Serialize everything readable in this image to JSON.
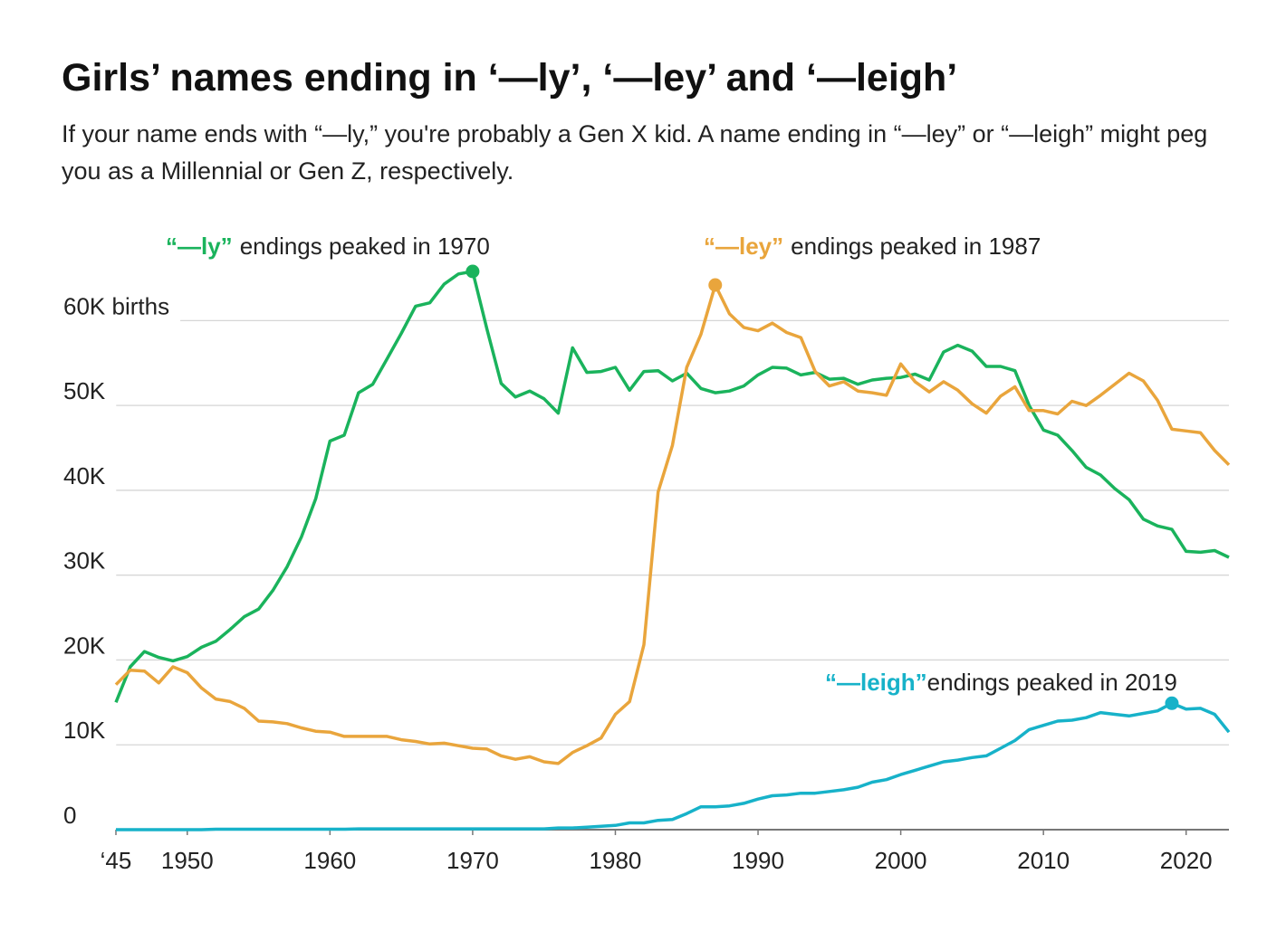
{
  "chart_data": {
    "type": "line",
    "title": "Girls’ names ending in ‘—ly’, ‘—ley’ and ‘—leigh’",
    "subtitle": "If your name ends with “—ly,” you're probably a Gen X kid. A name ending in “—ley” or “—leigh” might peg you as a Millennial or Gen Z, respectively.",
    "x": [
      1945,
      1946,
      1947,
      1948,
      1949,
      1950,
      1951,
      1952,
      1953,
      1954,
      1955,
      1956,
      1957,
      1958,
      1959,
      1960,
      1961,
      1962,
      1963,
      1964,
      1965,
      1966,
      1967,
      1968,
      1969,
      1970,
      1971,
      1972,
      1973,
      1974,
      1975,
      1976,
      1977,
      1978,
      1979,
      1980,
      1981,
      1982,
      1983,
      1984,
      1985,
      1986,
      1987,
      1988,
      1989,
      1990,
      1991,
      1992,
      1993,
      1994,
      1995,
      1996,
      1997,
      1998,
      1999,
      2000,
      2001,
      2002,
      2003,
      2004,
      2005,
      2006,
      2007,
      2008,
      2009,
      2010,
      2011,
      2012,
      2013,
      2014,
      2015,
      2016,
      2017,
      2018,
      2019,
      2020,
      2021,
      2022,
      2023
    ],
    "xlim": [
      1945,
      2023
    ],
    "xticks": [
      {
        "value": 1945,
        "label": "‘45"
      },
      1950,
      1960,
      1970,
      1980,
      1990,
      2000,
      2010,
      2020
    ],
    "ylim": [
      0,
      65800
    ],
    "yticks": [
      0,
      {
        "value": 10000,
        "label": "10K"
      },
      {
        "value": 20000,
        "label": "20K"
      },
      {
        "value": 30000,
        "label": "30K"
      },
      {
        "value": 40000,
        "label": "40K"
      },
      {
        "value": 50000,
        "label": "50K"
      },
      {
        "value": 60000,
        "label": "60K births"
      }
    ],
    "grid": true,
    "series": [
      {
        "name": "“—ly”",
        "color": "#1ab35c",
        "annotation": "endings peaked in 1970",
        "values": [
          15000,
          19200,
          21000,
          20300,
          19900,
          20400,
          21500,
          22200,
          23600,
          25100,
          26000,
          28200,
          31000,
          34500,
          39000,
          45800,
          46500,
          51500,
          52500,
          55500,
          58500,
          61700,
          62100,
          64300,
          65500,
          65800,
          59000,
          52600,
          51000,
          51700,
          50800,
          49100,
          56800,
          53900,
          54000,
          54500,
          51800,
          54000,
          54100,
          52900,
          53800,
          52000,
          51500,
          51700,
          52300,
          53600,
          54500,
          54400,
          53600,
          53900,
          53100,
          53200,
          52500,
          53000,
          53200,
          53300,
          53700,
          53000,
          56300,
          57100,
          56400,
          54600,
          54600,
          54100,
          50000,
          47100,
          46500,
          44700,
          42700,
          41800,
          40200,
          38900,
          36600,
          35800,
          35400,
          32800,
          32700,
          32900,
          32100
        ]
      },
      {
        "name": "“—ley”",
        "color": "#e9a53c",
        "annotation": "endings peaked in 1987",
        "values": [
          17100,
          18800,
          18700,
          17300,
          19200,
          18500,
          16700,
          15400,
          15100,
          14300,
          12800,
          12700,
          12500,
          12000,
          11600,
          11500,
          11000,
          11000,
          11000,
          11000,
          10600,
          10400,
          10100,
          10200,
          9900,
          9600,
          9500,
          8700,
          8300,
          8600,
          8000,
          7800,
          9100,
          9900,
          10800,
          13600,
          15100,
          21800,
          39800,
          45300,
          54500,
          58400,
          64200,
          60800,
          59200,
          58800,
          59700,
          58600,
          58000,
          54000,
          52300,
          52800,
          51700,
          51500,
          51200,
          54900,
          52800,
          51600,
          52800,
          51800,
          50200,
          49100,
          51100,
          52200,
          49400,
          49400,
          49000,
          50500,
          50000,
          51200,
          52500,
          53800,
          52900,
          50600,
          47200,
          47000,
          46800,
          44700,
          43000
        ]
      },
      {
        "name": "“—leigh”",
        "color": "#17b2c9",
        "annotation": "endings peaked in 2019",
        "values": [
          0,
          0,
          0,
          0,
          0,
          0,
          0,
          50,
          50,
          50,
          50,
          50,
          50,
          50,
          50,
          50,
          50,
          100,
          100,
          100,
          100,
          100,
          100,
          100,
          100,
          100,
          100,
          100,
          100,
          100,
          100,
          200,
          200,
          300,
          400,
          500,
          800,
          800,
          1100,
          1200,
          1900,
          2700,
          2700,
          2800,
          3100,
          3600,
          4000,
          4100,
          4300,
          4300,
          4500,
          4700,
          5000,
          5600,
          5900,
          6500,
          7000,
          7500,
          8000,
          8200,
          8500,
          8700,
          9600,
          10500,
          11800,
          12300,
          12800,
          12900,
          13200,
          13800,
          13600,
          13400,
          13700,
          14000,
          14900,
          14200,
          14300,
          13600,
          11500
        ]
      }
    ]
  }
}
